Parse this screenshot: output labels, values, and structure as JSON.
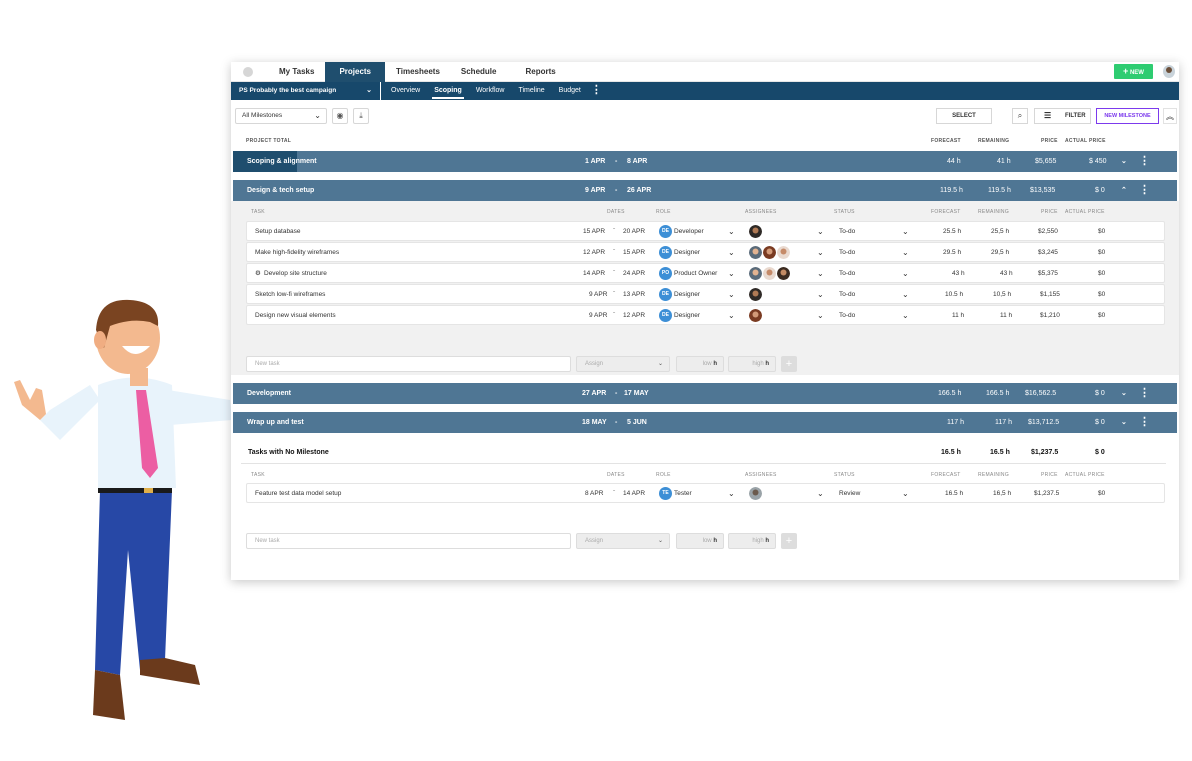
{
  "top_nav": {
    "tabs": [
      "My Tasks",
      "Projects",
      "Timesheets",
      "Schedule",
      "Reports"
    ],
    "new_button": "NEW"
  },
  "sub_nav": {
    "project": "PS  Probably the best campaign",
    "tabs": [
      "Overview",
      "Scoping",
      "Workflow",
      "Timeline",
      "Budget"
    ]
  },
  "toolbar": {
    "milestone_filter": "All Milestones",
    "select_label": "SELECT",
    "filter_label": "FILTER",
    "new_milestone_label": "NEW MILESTONE"
  },
  "project_total_headers": {
    "label": "PROJECT TOTAL",
    "forecast": "FORECAST",
    "remaining": "REMAINING",
    "price": "PRICE",
    "actual_price": "ACTUAL PRICE"
  },
  "milestones": [
    {
      "name": "Scoping & alignment",
      "start": "1 APR",
      "sep": "-",
      "end": "8 APR",
      "forecast": "44 h",
      "remaining": "41 h",
      "price": "$5,655",
      "actual": "$ 450"
    },
    {
      "name": "Design & tech setup",
      "start": "9 APR",
      "sep": "-",
      "end": "26 APR",
      "forecast": "119.5 h",
      "remaining": "119.5 h",
      "price": "$13,535",
      "actual": "$ 0"
    },
    {
      "name": "Development",
      "start": "27 APR",
      "sep": "-",
      "end": "17 MAY",
      "forecast": "166.5 h",
      "remaining": "166.5 h",
      "price": "$16,562.5",
      "actual": "$ 0"
    },
    {
      "name": "Wrap up and test",
      "start": "18 MAY",
      "sep": "-",
      "end": "5 JUN",
      "forecast": "117 h",
      "remaining": "117 h",
      "price": "$13,712.5",
      "actual": "$ 0"
    }
  ],
  "task_headers": {
    "task": "TASK",
    "dates": "DATES",
    "role": "ROLE",
    "assignees": "ASSIGNEES",
    "status": "STATUS",
    "forecast": "FORECAST",
    "remaining": "REMAINING",
    "price": "PRICE",
    "actual_price": "ACTUAL PRICE"
  },
  "design_tasks": [
    {
      "name": "Setup database",
      "start": "15 APR",
      "end": "20 APR",
      "role_badge": "DE",
      "role": "Developer",
      "status": "To-do",
      "forecast": "25.5 h",
      "remaining": "25,5 h",
      "price": "$2,550",
      "actual": "$0"
    },
    {
      "name": "Make high-fidelity wireframes",
      "start": "12 APR",
      "end": "15 APR",
      "role_badge": "DE",
      "role": "Designer",
      "status": "To-do",
      "forecast": "29.5 h",
      "remaining": "29,5 h",
      "price": "$3,245",
      "actual": "$0"
    },
    {
      "name": "Develop site structure",
      "start": "14 APR",
      "end": "24 APR",
      "role_badge": "PO",
      "role": "Product Owner",
      "status": "To-do",
      "forecast": "43 h",
      "remaining": "43 h",
      "price": "$5,375",
      "actual": "$0"
    },
    {
      "name": "Sketch low-fi wireframes",
      "start": "9 APR",
      "end": "13 APR",
      "role_badge": "DE",
      "role": "Designer",
      "status": "To-do",
      "forecast": "10.5 h",
      "remaining": "10,5 h",
      "price": "$1,155",
      "actual": "$0"
    },
    {
      "name": "Design new visual elements",
      "start": "9 APR",
      "end": "12 APR",
      "role_badge": "DE",
      "role": "Designer",
      "status": "To-do",
      "forecast": "11 h",
      "remaining": "11 h",
      "price": "$1,210",
      "actual": "$0"
    }
  ],
  "new_task": {
    "placeholder": "New task",
    "assign": "Assign",
    "low": "low",
    "high": "high",
    "unit": "h"
  },
  "no_milestone": {
    "title": "Tasks with No Milestone",
    "forecast": "16.5 h",
    "remaining": "16.5 h",
    "price": "$1,237.5",
    "actual": "$ 0",
    "tasks": [
      {
        "name": "Feature test data model setup",
        "start": "8 APR",
        "end": "14 APR",
        "role_badge": "TE",
        "role": "Tester",
        "status": "Review",
        "forecast": "16.5 h",
        "remaining": "16,5 h",
        "price": "$1,237.5",
        "actual": "$0"
      }
    ]
  },
  "colors": {
    "nav_dark": "#17486b",
    "milestone_bar": "#4f7694",
    "new_button": "#2ecc71",
    "new_milestone_accent": "#7c3aed",
    "role_badge": "#3d8fd6"
  }
}
